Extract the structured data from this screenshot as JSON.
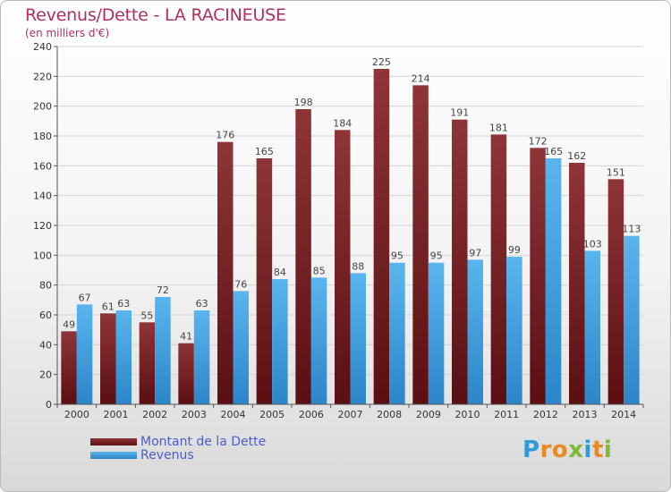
{
  "header": {
    "title": "Revenus/Dette - LA RACINEUSE",
    "subtitle": "(en milliers d'€)"
  },
  "legend": {
    "dette_label": "Montant de la Dette",
    "revenus_label": "Revenus"
  },
  "branding": {
    "logo_text": "Proxiti"
  },
  "colors": {
    "dette": "#7a1c1f",
    "revenus": "#3a9be0",
    "title": "#b0305a"
  },
  "chart_data": {
    "type": "bar",
    "title": "Revenus/Dette - LA RACINEUSE",
    "subtitle": "(en milliers d'€)",
    "xlabel": "",
    "ylabel": "",
    "ylim": [
      0,
      240
    ],
    "yticks": [
      0,
      20,
      40,
      60,
      80,
      100,
      120,
      140,
      160,
      180,
      200,
      220,
      240
    ],
    "grid": true,
    "legend_position": "bottom-left",
    "categories": [
      "2000",
      "2001",
      "2002",
      "2003",
      "2004",
      "2005",
      "2006",
      "2007",
      "2008",
      "2009",
      "2010",
      "2011",
      "2012",
      "2013",
      "2014"
    ],
    "series": [
      {
        "name": "Montant de la Dette",
        "values": [
          49,
          61,
          55,
          41,
          176,
          165,
          198,
          184,
          225,
          214,
          191,
          181,
          172,
          162,
          151
        ]
      },
      {
        "name": "Revenus",
        "values": [
          67,
          63,
          72,
          63,
          76,
          84,
          85,
          88,
          95,
          95,
          97,
          99,
          165,
          103,
          113
        ]
      }
    ]
  }
}
